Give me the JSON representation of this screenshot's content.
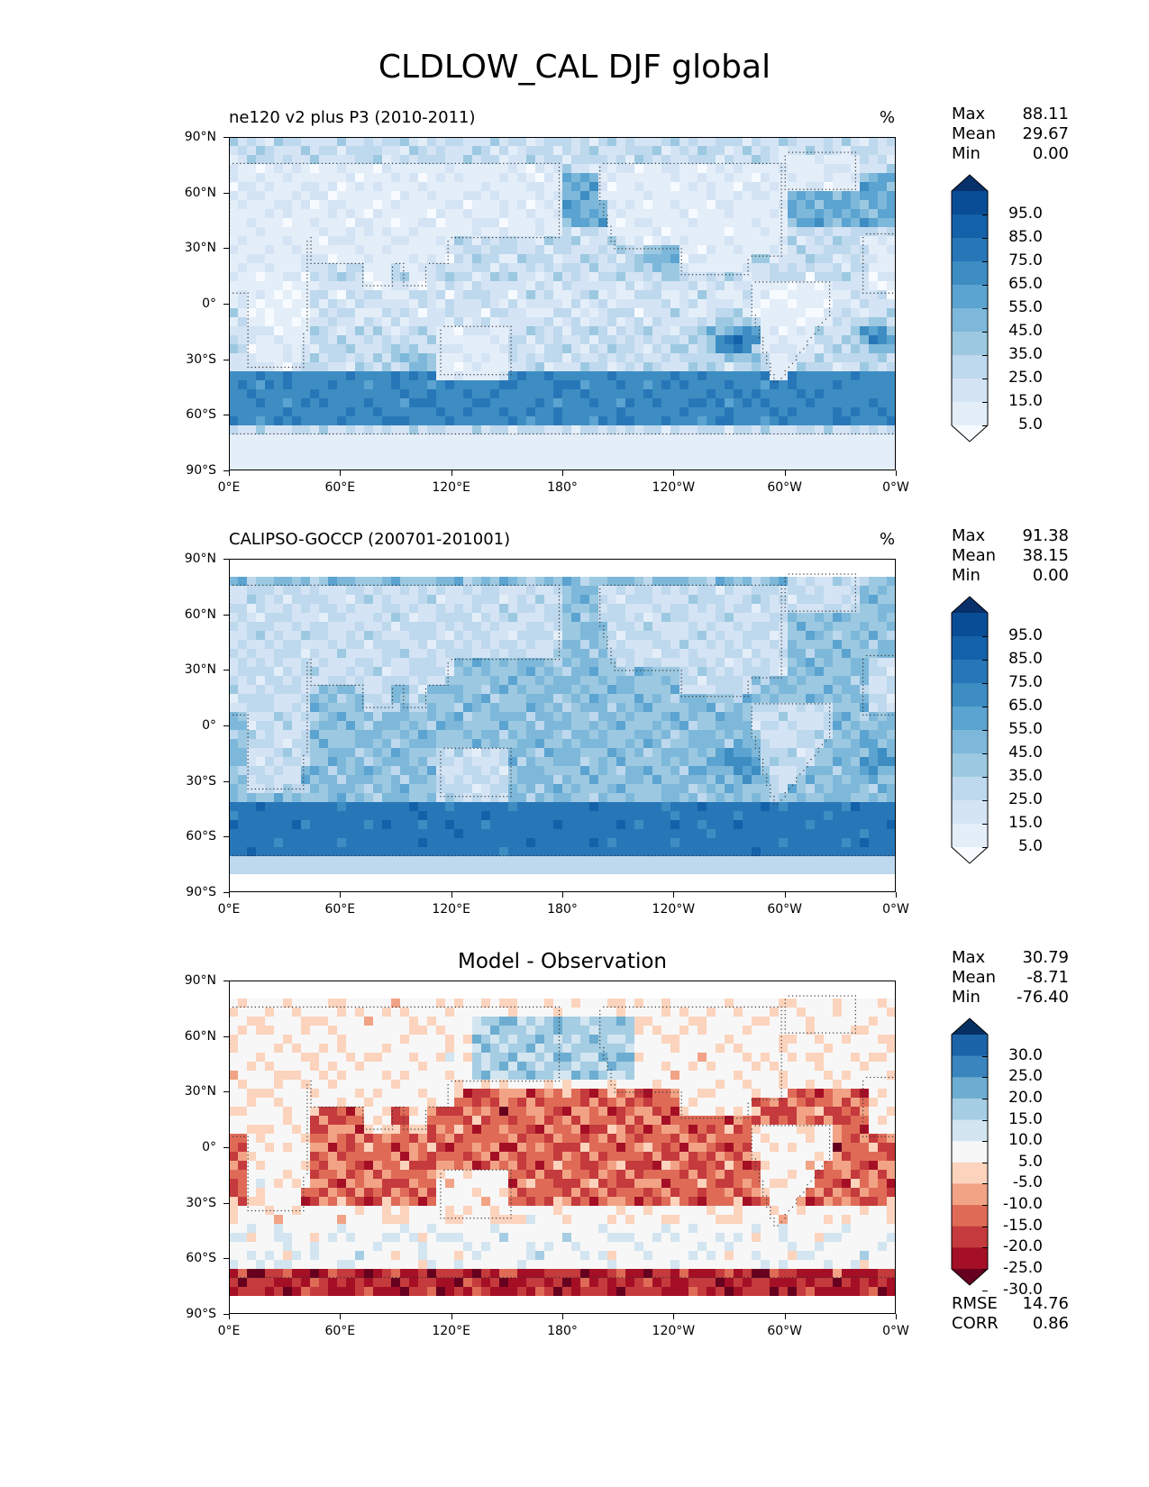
{
  "title": "CLDLOW_CAL DJF global",
  "chart_data": [
    {
      "type": "heatmap",
      "panel": "model",
      "title": "ne120 v2 plus P3 (2010-2011)",
      "units": "%",
      "stats": {
        "max_label": "Max",
        "max": "88.11",
        "mean_label": "Mean",
        "mean": "29.67",
        "min_label": "Min",
        "min": "0.00"
      },
      "colorbar_labels": [
        "95.0",
        "85.0",
        "75.0",
        "65.0",
        "55.0",
        "45.0",
        "35.0",
        "25.0",
        "15.0",
        "5.0"
      ],
      "colors": [
        "#f7fbff",
        "#e4eef9",
        "#d4e4f4",
        "#bed8ed",
        "#9cc9e1",
        "#7db8da",
        "#5ba3d0",
        "#3d8dc3",
        "#2777b8",
        "#1361a9",
        "#084d96",
        "#08306b"
      ],
      "yticks": [
        "90°N",
        "60°N",
        "30°N",
        "0°",
        "30°S",
        "60°S",
        "90°S"
      ],
      "xticks": [
        "0°E",
        "60°E",
        "120°E",
        "180°",
        "120°W",
        "60°W",
        "0°W"
      ]
    },
    {
      "type": "heatmap",
      "panel": "observation",
      "title": "CALIPSO-GOCCP (200701-201001)",
      "units": "%",
      "stats": {
        "max_label": "Max",
        "max": "91.38",
        "mean_label": "Mean",
        "mean": "38.15",
        "min_label": "Min",
        "min": "0.00"
      },
      "colorbar_labels": [
        "95.0",
        "85.0",
        "75.0",
        "65.0",
        "55.0",
        "45.0",
        "35.0",
        "25.0",
        "15.0",
        "5.0"
      ],
      "colors": [
        "#f7fbff",
        "#e4eef9",
        "#d4e4f4",
        "#bed8ed",
        "#9cc9e1",
        "#7db8da",
        "#5ba3d0",
        "#3d8dc3",
        "#2777b8",
        "#1361a9",
        "#084d96",
        "#08306b"
      ],
      "yticks": [
        "90°N",
        "60°N",
        "30°N",
        "0°",
        "30°S",
        "60°S",
        "90°S"
      ],
      "xticks": [
        "0°E",
        "60°E",
        "120°E",
        "180°",
        "120°W",
        "60°W",
        "0°W"
      ]
    },
    {
      "type": "heatmap",
      "panel": "difference",
      "title": "Model - Observation",
      "units": "",
      "stats": {
        "max_label": "Max",
        "max": "30.79",
        "mean_label": "Mean",
        "mean": "-8.71",
        "min_label": "Min",
        "min": "-76.40"
      },
      "metrics": {
        "rmse_label": "RMSE",
        "rmse": "14.76",
        "corr_label": "CORR",
        "corr": "0.86"
      },
      "colorbar_labels": [
        "30.0",
        "25.0",
        "20.0",
        "15.0",
        "10.0",
        "5.0",
        "-5.0",
        "-10.0",
        "-15.0",
        "-20.0",
        "-25.0",
        "-30.0"
      ],
      "colors": [
        "#67001f",
        "#a50f25",
        "#c53a3c",
        "#df6b57",
        "#f2a385",
        "#fcd3bd",
        "#f7f7f7",
        "#d2e5f0",
        "#a5cde3",
        "#6cadd1",
        "#3a85bd",
        "#1c64a8",
        "#053061"
      ],
      "yticks": [
        "90°N",
        "60°N",
        "30°N",
        "0°",
        "30°S",
        "60°S",
        "90°S"
      ],
      "xticks": [
        "0°E",
        "60°E",
        "120°E",
        "180°",
        "120°W",
        "60°W",
        "0°W"
      ]
    }
  ]
}
